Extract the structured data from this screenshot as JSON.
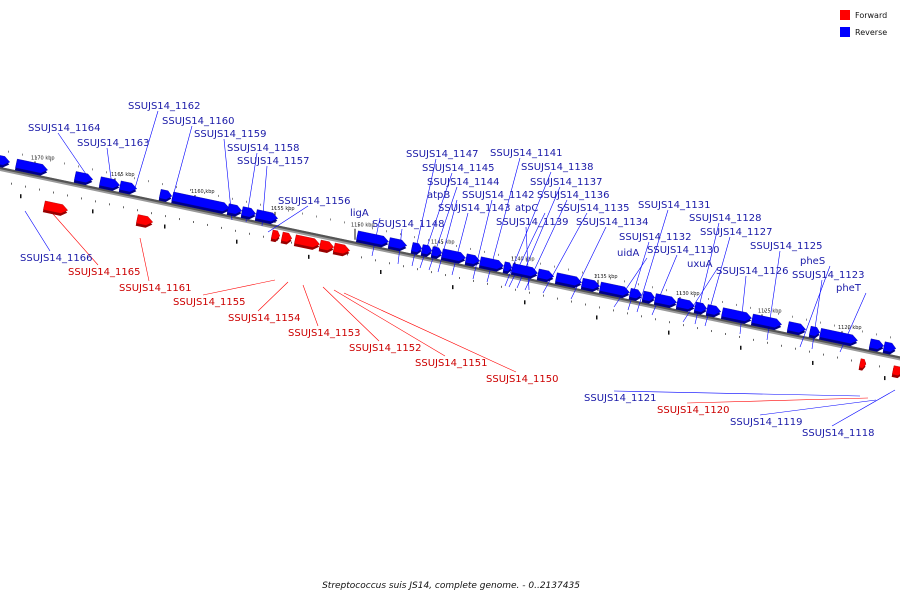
{
  "colors": {
    "forward": "#ff0000",
    "reverse": "#0000ff",
    "forward_label": "#cc0000",
    "reverse_label": "#1a1aa8",
    "backbone": "#808080"
  },
  "legend": {
    "forward": "Forward",
    "reverse": "Reverse"
  },
  "caption": "Streptococcus suis JS14, complete genome. - 0..2137435",
  "ticks": [
    "1170 kbp",
    "1165 kbp",
    "1160 kbp",
    "1155 kbp",
    "1150 kbp",
    "1145 kbp",
    "1140 kbp",
    "1135 kbp",
    "1130 kbp",
    "1125 kbp",
    "1120 kbp"
  ],
  "genes": [
    {
      "name": "SSUJS14_1166",
      "strand": "reverse"
    },
    {
      "name": "SSUJS14_1165",
      "strand": "forward"
    },
    {
      "name": "SSUJS14_1164",
      "strand": "reverse"
    },
    {
      "name": "SSUJS14_1163",
      "strand": "reverse"
    },
    {
      "name": "SSUJS14_1162",
      "strand": "reverse"
    },
    {
      "name": "SSUJS14_1161",
      "strand": "forward"
    },
    {
      "name": "SSUJS14_1160",
      "strand": "reverse"
    },
    {
      "name": "SSUJS14_1159",
      "strand": "reverse"
    },
    {
      "name": "SSUJS14_1158",
      "strand": "reverse"
    },
    {
      "name": "SSUJS14_1157",
      "strand": "reverse"
    },
    {
      "name": "SSUJS14_1156",
      "strand": "reverse"
    },
    {
      "name": "SSUJS14_1155",
      "strand": "forward"
    },
    {
      "name": "SSUJS14_1154",
      "strand": "forward"
    },
    {
      "name": "SSUJS14_1153",
      "strand": "forward"
    },
    {
      "name": "SSUJS14_1152",
      "strand": "forward"
    },
    {
      "name": "SSUJS14_1151",
      "strand": "forward"
    },
    {
      "name": "SSUJS14_1150",
      "strand": "forward"
    },
    {
      "name": "ligA",
      "strand": "reverse"
    },
    {
      "name": "SSUJS14_1148",
      "strand": "reverse"
    },
    {
      "name": "SSUJS14_1147",
      "strand": "reverse"
    },
    {
      "name": "SSUJS14_1145",
      "strand": "reverse"
    },
    {
      "name": "SSUJS14_1144",
      "strand": "reverse"
    },
    {
      "name": "atpB",
      "strand": "reverse"
    },
    {
      "name": "SSUJS14_1143",
      "strand": "reverse"
    },
    {
      "name": "SSUJS14_1142",
      "strand": "reverse"
    },
    {
      "name": "SSUJS14_1141",
      "strand": "reverse"
    },
    {
      "name": "SSUJS14_1138",
      "strand": "reverse"
    },
    {
      "name": "SSUJS14_1137",
      "strand": "reverse"
    },
    {
      "name": "atpC",
      "strand": "reverse"
    },
    {
      "name": "SSUJS14_1136",
      "strand": "reverse"
    },
    {
      "name": "SSUJS14_1139",
      "strand": "reverse"
    },
    {
      "name": "SSUJS14_1135",
      "strand": "reverse"
    },
    {
      "name": "SSUJS14_1134",
      "strand": "reverse"
    },
    {
      "name": "uidA",
      "strand": "reverse"
    },
    {
      "name": "SSUJS14_1132",
      "strand": "reverse"
    },
    {
      "name": "SSUJS14_1131",
      "strand": "reverse"
    },
    {
      "name": "SSUJS14_1130",
      "strand": "reverse"
    },
    {
      "name": "uxuA",
      "strand": "reverse"
    },
    {
      "name": "SSUJS14_1128",
      "strand": "reverse"
    },
    {
      "name": "SSUJS14_1127",
      "strand": "reverse"
    },
    {
      "name": "SSUJS14_1126",
      "strand": "reverse"
    },
    {
      "name": "SSUJS14_1125",
      "strand": "reverse"
    },
    {
      "name": "pheS",
      "strand": "reverse"
    },
    {
      "name": "SSUJS14_1123",
      "strand": "reverse"
    },
    {
      "name": "pheT",
      "strand": "reverse"
    },
    {
      "name": "SSUJS14_1121",
      "strand": "reverse"
    },
    {
      "name": "SSUJS14_1120",
      "strand": "forward"
    },
    {
      "name": "SSUJS14_1119",
      "strand": "reverse"
    },
    {
      "name": "SSUJS14_1118",
      "strand": "reverse"
    }
  ]
}
